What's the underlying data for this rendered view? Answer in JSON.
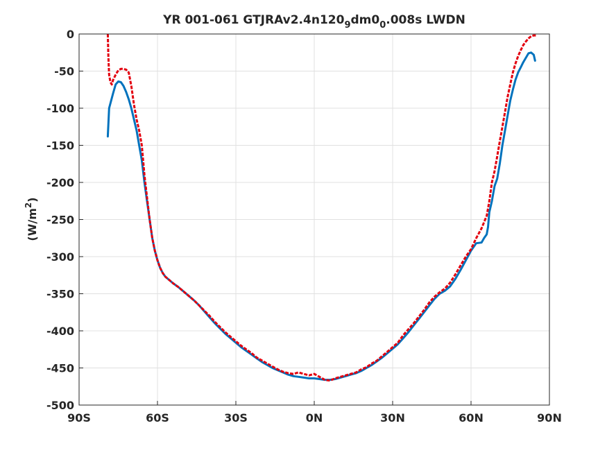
{
  "chart_data": {
    "type": "line",
    "title": {
      "prefix": "YR 001-061 GTJRAv2.4n120",
      "sub1": "9",
      "mid": "dm0",
      "sub2": "0",
      "suffix": ".008s LWDN"
    },
    "ylabel": {
      "prefix": "(W/m",
      "sup": "2",
      "suffix": ")"
    },
    "xlabel": "",
    "xlim": [
      -90,
      90
    ],
    "ylim": [
      -500,
      0
    ],
    "x_ticks": [
      {
        "value": -90,
        "label": "90S"
      },
      {
        "value": -60,
        "label": "60S"
      },
      {
        "value": -30,
        "label": "30S"
      },
      {
        "value": 0,
        "label": "0N"
      },
      {
        "value": 30,
        "label": "30N"
      },
      {
        "value": 60,
        "label": "60N"
      },
      {
        "value": 90,
        "label": "90N"
      }
    ],
    "y_ticks": [
      {
        "value": 0,
        "label": "0"
      },
      {
        "value": -50,
        "label": "-50"
      },
      {
        "value": -100,
        "label": "-100"
      },
      {
        "value": -150,
        "label": "-150"
      },
      {
        "value": -200,
        "label": "-200"
      },
      {
        "value": -250,
        "label": "-250"
      },
      {
        "value": -300,
        "label": "-300"
      },
      {
        "value": -350,
        "label": "-350"
      },
      {
        "value": -400,
        "label": "-400"
      },
      {
        "value": -450,
        "label": "-450"
      },
      {
        "value": -500,
        "label": "-500"
      }
    ],
    "grid": true,
    "series": [
      {
        "color": "#0072BD",
        "style": "solid",
        "points": [
          [
            -79,
            -138
          ],
          [
            -78.5,
            -100
          ],
          [
            -77,
            -80
          ],
          [
            -76,
            -68
          ],
          [
            -75,
            -64
          ],
          [
            -74,
            -65
          ],
          [
            -73,
            -70
          ],
          [
            -72,
            -78
          ],
          [
            -71,
            -88
          ],
          [
            -70,
            -100
          ],
          [
            -69,
            -115
          ],
          [
            -68,
            -130
          ],
          [
            -67,
            -150
          ],
          [
            -66,
            -170
          ],
          [
            -65,
            -200
          ],
          [
            -64,
            -225
          ],
          [
            -63,
            -250
          ],
          [
            -62,
            -275
          ],
          [
            -61,
            -292
          ],
          [
            -60,
            -305
          ],
          [
            -59,
            -315
          ],
          [
            -58,
            -322
          ],
          [
            -57,
            -327
          ],
          [
            -56,
            -330
          ],
          [
            -55,
            -333
          ],
          [
            -54,
            -336
          ],
          [
            -52,
            -341
          ],
          [
            -50,
            -347
          ],
          [
            -48,
            -353
          ],
          [
            -46,
            -359
          ],
          [
            -44,
            -366
          ],
          [
            -42,
            -374
          ],
          [
            -40,
            -382
          ],
          [
            -38,
            -390
          ],
          [
            -36,
            -397
          ],
          [
            -34,
            -404
          ],
          [
            -32,
            -410
          ],
          [
            -30,
            -416
          ],
          [
            -28,
            -422
          ],
          [
            -26,
            -427
          ],
          [
            -24,
            -432
          ],
          [
            -22,
            -437
          ],
          [
            -20,
            -442
          ],
          [
            -18,
            -446
          ],
          [
            -16,
            -450
          ],
          [
            -14,
            -453
          ],
          [
            -12,
            -456
          ],
          [
            -10,
            -459
          ],
          [
            -8,
            -461
          ],
          [
            -6,
            -462
          ],
          [
            -4,
            -463
          ],
          [
            -2,
            -464
          ],
          [
            0,
            -464
          ],
          [
            2,
            -465
          ],
          [
            4,
            -466
          ],
          [
            6,
            -466
          ],
          [
            8,
            -465
          ],
          [
            10,
            -463
          ],
          [
            12,
            -461
          ],
          [
            14,
            -459
          ],
          [
            16,
            -457
          ],
          [
            18,
            -454
          ],
          [
            20,
            -450
          ],
          [
            22,
            -446
          ],
          [
            24,
            -441
          ],
          [
            26,
            -436
          ],
          [
            28,
            -430
          ],
          [
            30,
            -424
          ],
          [
            32,
            -418
          ],
          [
            34,
            -410
          ],
          [
            36,
            -402
          ],
          [
            38,
            -393
          ],
          [
            40,
            -384
          ],
          [
            42,
            -375
          ],
          [
            44,
            -366
          ],
          [
            46,
            -357
          ],
          [
            48,
            -350
          ],
          [
            50,
            -346
          ],
          [
            52,
            -340
          ],
          [
            54,
            -330
          ],
          [
            56,
            -318
          ],
          [
            58,
            -305
          ],
          [
            60,
            -292
          ],
          [
            62,
            -282
          ],
          [
            64,
            -281
          ],
          [
            65,
            -275
          ],
          [
            66,
            -270
          ],
          [
            66.5,
            -260
          ],
          [
            67,
            -240
          ],
          [
            68,
            -225
          ],
          [
            69,
            -205
          ],
          [
            70,
            -195
          ],
          [
            71,
            -175
          ],
          [
            72,
            -150
          ],
          [
            73,
            -130
          ],
          [
            74,
            -110
          ],
          [
            75,
            -90
          ],
          [
            76,
            -75
          ],
          [
            77,
            -62
          ],
          [
            78,
            -52
          ],
          [
            79,
            -45
          ],
          [
            80,
            -38
          ],
          [
            81,
            -32
          ],
          [
            82,
            -26
          ],
          [
            83,
            -25
          ],
          [
            84,
            -28
          ],
          [
            84.5,
            -36
          ]
        ]
      },
      {
        "color": "#E3000F",
        "style": "dashed",
        "points": [
          [
            -79,
            0
          ],
          [
            -78.8,
            -30
          ],
          [
            -78.5,
            -55
          ],
          [
            -78,
            -65
          ],
          [
            -77.5,
            -68
          ],
          [
            -77,
            -62
          ],
          [
            -76,
            -55
          ],
          [
            -75,
            -49
          ],
          [
            -74,
            -47
          ],
          [
            -73,
            -47
          ],
          [
            -72,
            -48
          ],
          [
            -71,
            -52
          ],
          [
            -70,
            -70
          ],
          [
            -69,
            -95
          ],
          [
            -68,
            -115
          ],
          [
            -67,
            -130
          ],
          [
            -66,
            -150
          ],
          [
            -65,
            -190
          ],
          [
            -64,
            -220
          ],
          [
            -63,
            -250
          ],
          [
            -62,
            -275
          ],
          [
            -61,
            -292
          ],
          [
            -60,
            -305
          ],
          [
            -59,
            -315
          ],
          [
            -58,
            -322
          ],
          [
            -57,
            -327
          ],
          [
            -56,
            -330
          ],
          [
            -55,
            -333
          ],
          [
            -54,
            -336
          ],
          [
            -52,
            -341
          ],
          [
            -50,
            -347
          ],
          [
            -48,
            -353
          ],
          [
            -46,
            -359
          ],
          [
            -44,
            -366
          ],
          [
            -42,
            -373
          ],
          [
            -40,
            -380
          ],
          [
            -38,
            -388
          ],
          [
            -36,
            -395
          ],
          [
            -34,
            -402
          ],
          [
            -32,
            -408
          ],
          [
            -30,
            -414
          ],
          [
            -28,
            -420
          ],
          [
            -26,
            -425
          ],
          [
            -24,
            -430
          ],
          [
            -22,
            -436
          ],
          [
            -20,
            -440
          ],
          [
            -18,
            -444
          ],
          [
            -16,
            -448
          ],
          [
            -14,
            -452
          ],
          [
            -12,
            -455
          ],
          [
            -10,
            -457
          ],
          [
            -8,
            -458
          ],
          [
            -6,
            -456
          ],
          [
            -4,
            -458
          ],
          [
            -2,
            -460
          ],
          [
            0,
            -458
          ],
          [
            2,
            -462
          ],
          [
            4,
            -466
          ],
          [
            6,
            -467
          ],
          [
            8,
            -464
          ],
          [
            10,
            -462
          ],
          [
            12,
            -460
          ],
          [
            14,
            -458
          ],
          [
            16,
            -456
          ],
          [
            18,
            -452
          ],
          [
            20,
            -449
          ],
          [
            22,
            -444
          ],
          [
            24,
            -440
          ],
          [
            26,
            -434
          ],
          [
            28,
            -428
          ],
          [
            30,
            -422
          ],
          [
            32,
            -416
          ],
          [
            34,
            -406
          ],
          [
            36,
            -398
          ],
          [
            38,
            -390
          ],
          [
            40,
            -381
          ],
          [
            42,
            -372
          ],
          [
            44,
            -362
          ],
          [
            46,
            -354
          ],
          [
            48,
            -348
          ],
          [
            50,
            -343
          ],
          [
            52,
            -335
          ],
          [
            54,
            -324
          ],
          [
            56,
            -312
          ],
          [
            58,
            -300
          ],
          [
            60,
            -290
          ],
          [
            62,
            -275
          ],
          [
            64,
            -262
          ],
          [
            66,
            -245
          ],
          [
            67,
            -225
          ],
          [
            68,
            -200
          ],
          [
            69,
            -185
          ],
          [
            70,
            -165
          ],
          [
            71,
            -145
          ],
          [
            72,
            -125
          ],
          [
            73,
            -105
          ],
          [
            74,
            -85
          ],
          [
            75,
            -68
          ],
          [
            76,
            -52
          ],
          [
            77,
            -40
          ],
          [
            78,
            -30
          ],
          [
            79,
            -22
          ],
          [
            80,
            -15
          ],
          [
            81,
            -10
          ],
          [
            82,
            -6
          ],
          [
            83,
            -3
          ],
          [
            84,
            -2
          ],
          [
            85,
            -2
          ]
        ]
      }
    ]
  }
}
